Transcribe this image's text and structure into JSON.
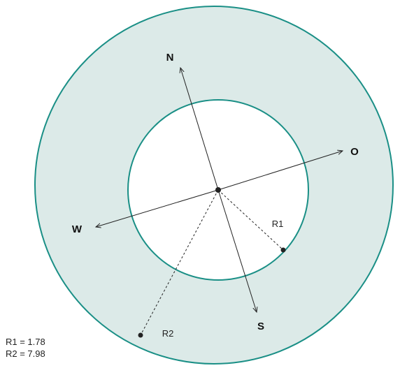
{
  "directions": {
    "north": "N",
    "east": "O",
    "south": "S",
    "west": "W"
  },
  "radii": {
    "r1_label": "R1",
    "r2_label": "R2"
  },
  "legend": {
    "r1": "R1 = 1.78",
    "r2": "R2 = 7.98"
  }
}
